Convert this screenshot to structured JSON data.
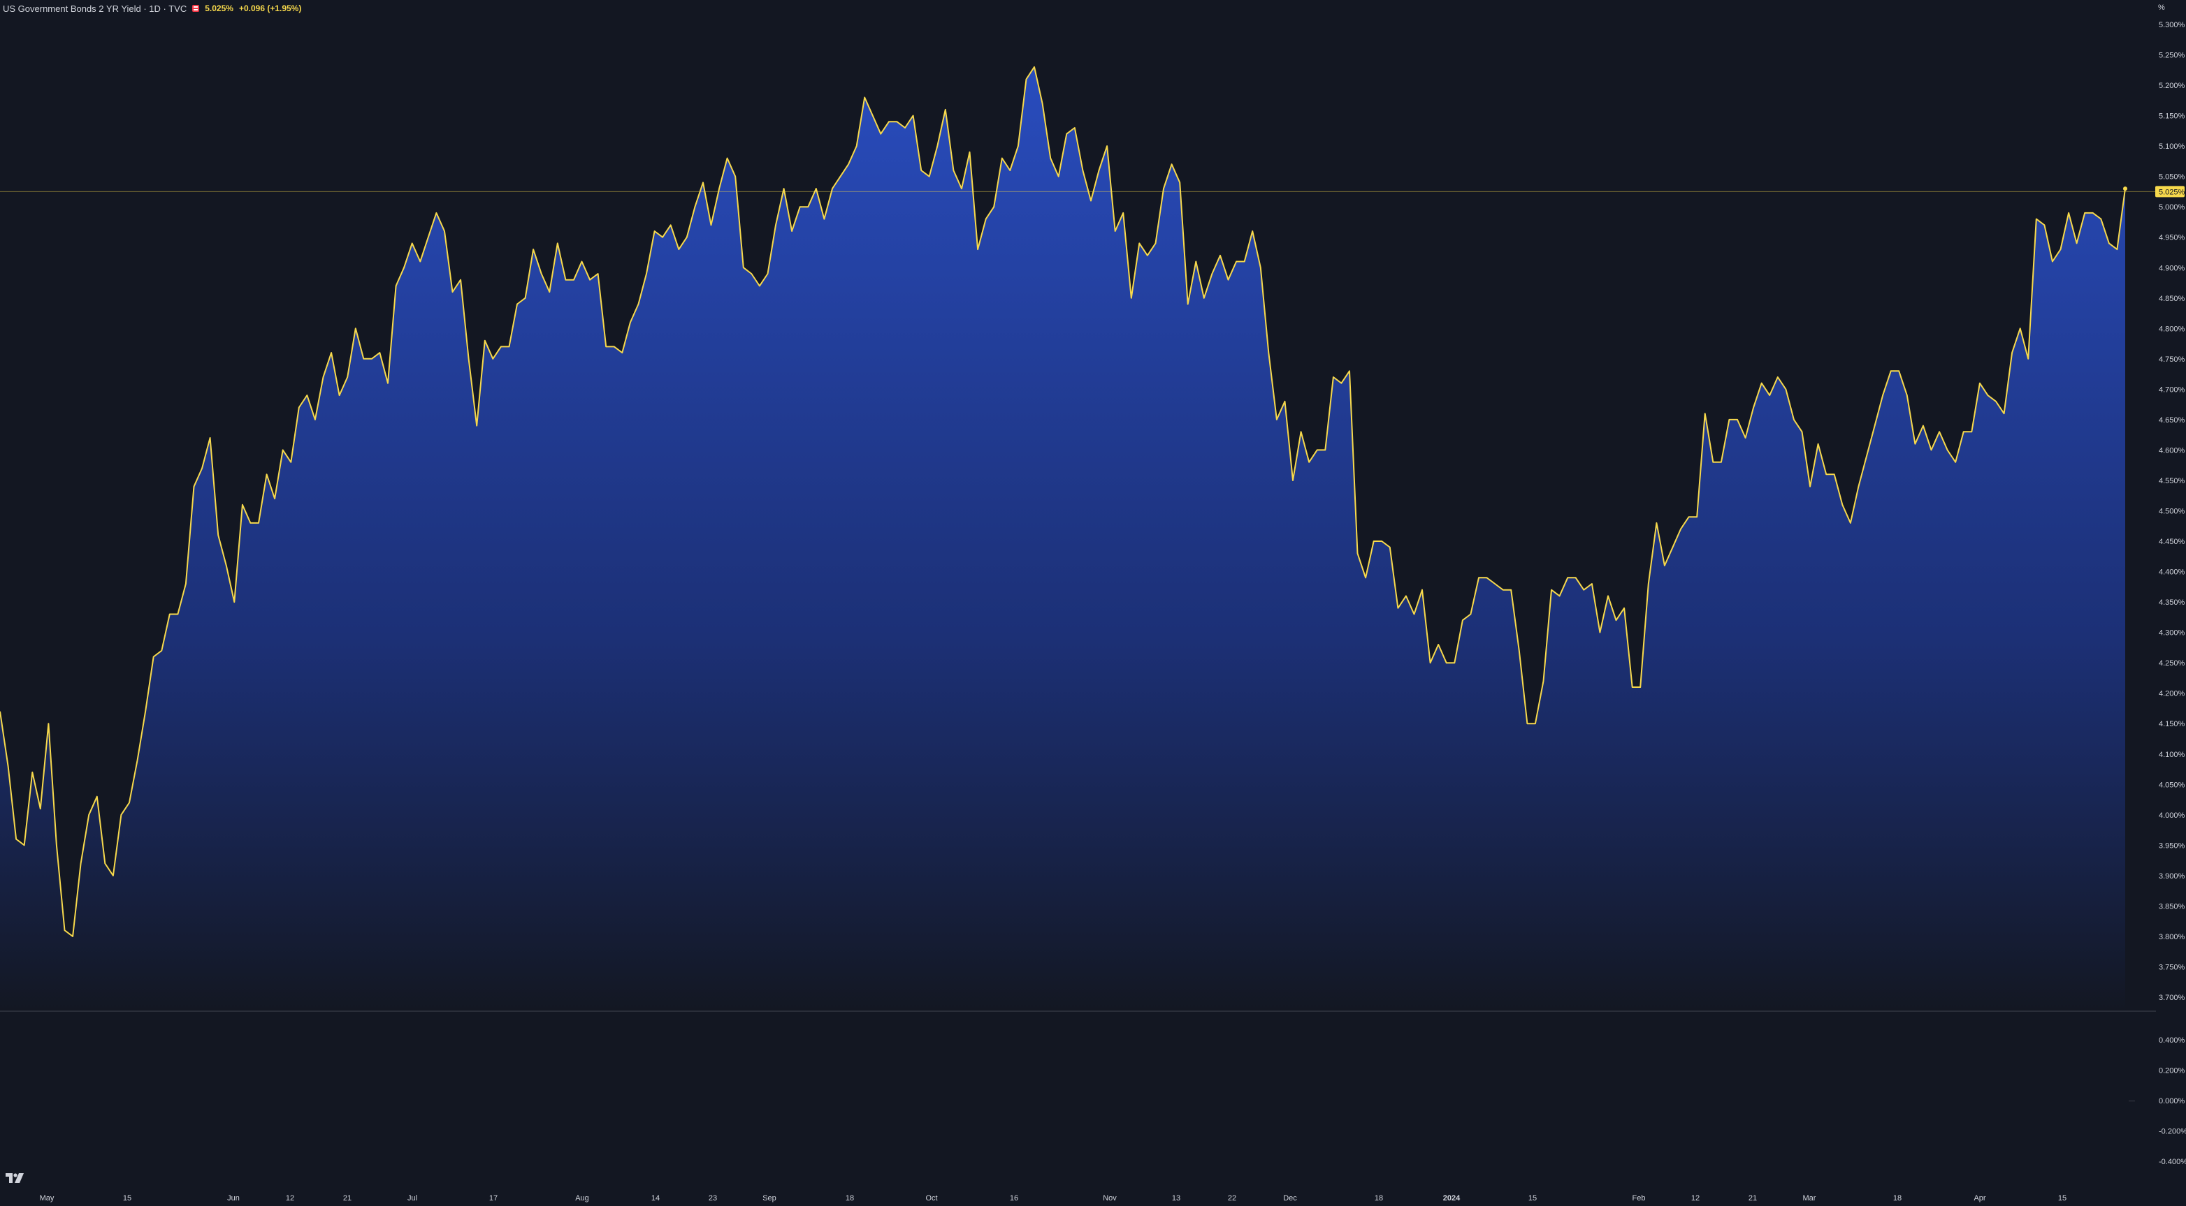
{
  "header": {
    "symbol": "US Government Bonds 2 YR Yield · 1D · TVC",
    "price": "5.025%",
    "change": "+0.096 (+1.95%)"
  },
  "price_scale_unit": "%",
  "last_price_label": "5.025%",
  "colors": {
    "background": "#131722",
    "line": "#f7d94c",
    "area_top": "#2a4fc6",
    "area_bottom": "#131722",
    "text": "#d1d4dc"
  },
  "icons": [
    "tradingview-logo-icon",
    "flag-icon"
  ],
  "chart_data": {
    "type": "area",
    "y_unit": "%",
    "ylim": [
      3.68,
      5.33
    ],
    "y_ticks": [
      "5.300%",
      "5.250%",
      "5.200%",
      "5.150%",
      "5.100%",
      "5.050%",
      "5.000%",
      "4.950%",
      "4.900%",
      "4.850%",
      "4.800%",
      "4.750%",
      "4.700%",
      "4.650%",
      "4.600%",
      "4.550%",
      "4.500%",
      "4.450%",
      "4.400%",
      "4.350%",
      "4.300%",
      "4.250%",
      "4.200%",
      "4.150%",
      "4.100%",
      "4.050%",
      "4.000%",
      "3.950%",
      "3.900%",
      "3.850%",
      "3.800%",
      "3.750%",
      "3.700%"
    ],
    "x_ticks": [
      "May",
      "15",
      "Jun",
      "12",
      "21",
      "Jul",
      "17",
      "Aug",
      "14",
      "23",
      "Sep",
      "18",
      "Oct",
      "16",
      "Nov",
      "13",
      "22",
      "Dec",
      "18",
      "2024",
      "15",
      "Feb",
      "12",
      "21",
      "Mar",
      "18",
      "Apr",
      "15"
    ],
    "x_ticks_bold": [
      "2024"
    ],
    "y": [
      4.17,
      4.08,
      3.96,
      3.95,
      4.07,
      4.01,
      4.15,
      3.95,
      3.81,
      3.8,
      3.92,
      4.0,
      4.03,
      3.92,
      3.9,
      4.0,
      4.02,
      4.09,
      4.17,
      4.26,
      4.27,
      4.33,
      4.33,
      4.38,
      4.54,
      4.57,
      4.62,
      4.46,
      4.41,
      4.35,
      4.51,
      4.48,
      4.48,
      4.56,
      4.52,
      4.6,
      4.58,
      4.67,
      4.69,
      4.65,
      4.72,
      4.76,
      4.69,
      4.72,
      4.8,
      4.75,
      4.75,
      4.76,
      4.71,
      4.87,
      4.9,
      4.94,
      4.91,
      4.95,
      4.99,
      4.96,
      4.86,
      4.88,
      4.75,
      4.64,
      4.78,
      4.75,
      4.77,
      4.77,
      4.84,
      4.85,
      4.93,
      4.89,
      4.86,
      4.94,
      4.88,
      4.88,
      4.91,
      4.88,
      4.89,
      4.77,
      4.77,
      4.76,
      4.81,
      4.84,
      4.89,
      4.96,
      4.95,
      4.97,
      4.93,
      4.95,
      5.0,
      5.04,
      4.97,
      5.03,
      5.08,
      5.05,
      4.9,
      4.89,
      4.87,
      4.89,
      4.97,
      5.03,
      4.96,
      5.0,
      5.0,
      5.03,
      4.98,
      5.03,
      5.05,
      5.07,
      5.1,
      5.18,
      5.15,
      5.12,
      5.14,
      5.14,
      5.13,
      5.15,
      5.06,
      5.05,
      5.1,
      5.16,
      5.06,
      5.03,
      5.09,
      4.93,
      4.98,
      5.0,
      5.08,
      5.06,
      5.1,
      5.21,
      5.23,
      5.17,
      5.08,
      5.05,
      5.12,
      5.13,
      5.06,
      5.01,
      5.06,
      5.1,
      4.96,
      4.99,
      4.85,
      4.94,
      4.92,
      4.94,
      5.03,
      5.07,
      5.04,
      4.84,
      4.91,
      4.85,
      4.89,
      4.92,
      4.88,
      4.91,
      4.91,
      4.96,
      4.9,
      4.76,
      4.65,
      4.68,
      4.55,
      4.63,
      4.58,
      4.6,
      4.6,
      4.72,
      4.71,
      4.73,
      4.43,
      4.39,
      4.45,
      4.45,
      4.44,
      4.34,
      4.36,
      4.33,
      4.37,
      4.25,
      4.28,
      4.25,
      4.25,
      4.32,
      4.33,
      4.39,
      4.39,
      4.38,
      4.37,
      4.37,
      4.27,
      4.15,
      4.15,
      4.22,
      4.37,
      4.36,
      4.39,
      4.39,
      4.37,
      4.38,
      4.3,
      4.36,
      4.32,
      4.34,
      4.21,
      4.21,
      4.38,
      4.48,
      4.41,
      4.44,
      4.47,
      4.49,
      4.49,
      4.66,
      4.58,
      4.58,
      4.65,
      4.65,
      4.62,
      4.67,
      4.71,
      4.69,
      4.72,
      4.7,
      4.65,
      4.63,
      4.54,
      4.61,
      4.56,
      4.56,
      4.51,
      4.48,
      4.54,
      4.59,
      4.64,
      4.69,
      4.73,
      4.73,
      4.69,
      4.61,
      4.64,
      4.6,
      4.63,
      4.6,
      4.58,
      4.63,
      4.63,
      4.71,
      4.69,
      4.68,
      4.66,
      4.76,
      4.8,
      4.75,
      4.98,
      4.97,
      4.91,
      4.93,
      4.99,
      4.94,
      4.99,
      4.99,
      4.98,
      4.94,
      4.93,
      5.03
    ],
    "last_value": 5.025,
    "indicator_pane": {
      "y_ticks": [
        "0.400%",
        "0.200%",
        "0.000%",
        "-0.200%",
        "-0.400%"
      ]
    },
    "grid": false,
    "legend": "none"
  }
}
